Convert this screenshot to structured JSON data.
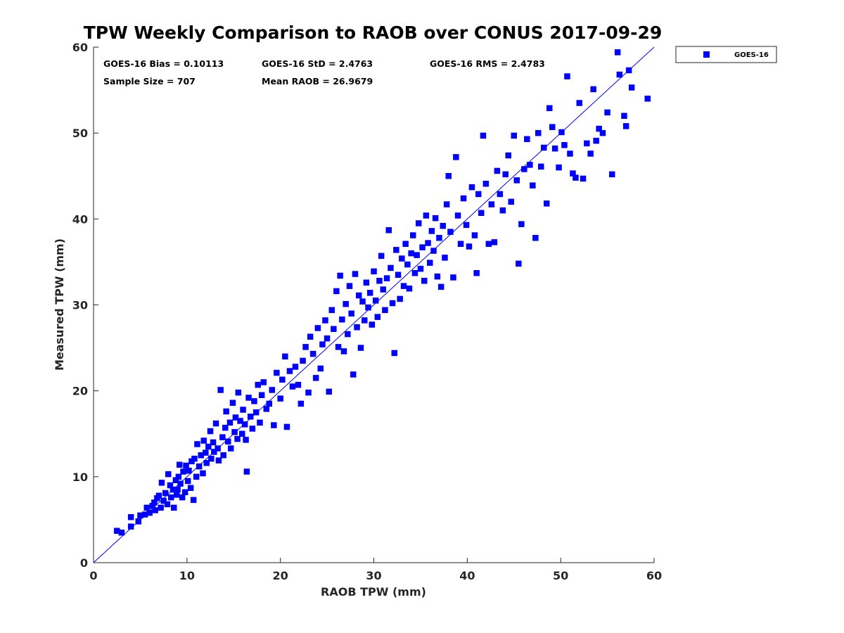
{
  "chart_data": {
    "type": "scatter",
    "title": "TPW Weekly Comparison to RAOB over CONUS 2017-09-29",
    "xlabel": "RAOB TPW (mm)",
    "ylabel": "Measured TPW (mm)",
    "xlim": [
      0,
      60
    ],
    "ylim": [
      0,
      60
    ],
    "xticks": [
      "0",
      "10",
      "20",
      "30",
      "40",
      "50",
      "60"
    ],
    "yticks": [
      "0",
      "10",
      "20",
      "30",
      "40",
      "50",
      "60"
    ],
    "grid": false,
    "legend_position": "outside-top-right",
    "reference_line": {
      "from": [
        0,
        0
      ],
      "to": [
        60,
        60
      ],
      "color": "#0000ff"
    },
    "stats": {
      "bias": "GOES-16 Bias = 0.10113",
      "std": "GOES-16 StD = 2.4763",
      "rms": "GOES-16 RMS = 2.4783",
      "sample_size": "Sample Size = 707",
      "mean_raob": "Mean RAOB = 26.9679"
    },
    "series": [
      {
        "name": "GOES-16",
        "color": "#0000ff",
        "marker": "square",
        "points": [
          [
            2.5,
            3.7
          ],
          [
            3.0,
            3.5
          ],
          [
            4.0,
            5.3
          ],
          [
            4.0,
            4.2
          ],
          [
            4.8,
            4.8
          ],
          [
            5.0,
            5.5
          ],
          [
            5.5,
            5.6
          ],
          [
            5.7,
            6.4
          ],
          [
            6.0,
            5.8
          ],
          [
            6.3,
            6.6
          ],
          [
            6.5,
            7.0
          ],
          [
            6.6,
            6.1
          ],
          [
            6.8,
            7.5
          ],
          [
            7.0,
            7.8
          ],
          [
            7.2,
            6.4
          ],
          [
            7.3,
            9.3
          ],
          [
            7.5,
            7.2
          ],
          [
            7.7,
            8.1
          ],
          [
            7.9,
            6.8
          ],
          [
            8.0,
            10.3
          ],
          [
            8.2,
            9.0
          ],
          [
            8.3,
            7.6
          ],
          [
            8.5,
            8.5
          ],
          [
            8.6,
            6.4
          ],
          [
            8.8,
            9.6
          ],
          [
            8.9,
            7.9
          ],
          [
            9.0,
            8.5
          ],
          [
            9.1,
            10.0
          ],
          [
            9.2,
            11.4
          ],
          [
            9.3,
            9.2
          ],
          [
            9.5,
            7.6
          ],
          [
            9.6,
            10.6
          ],
          [
            9.8,
            8.2
          ],
          [
            9.9,
            11.3
          ],
          [
            10.1,
            9.5
          ],
          [
            10.2,
            10.7
          ],
          [
            10.4,
            8.7
          ],
          [
            10.5,
            11.8
          ],
          [
            10.7,
            7.3
          ],
          [
            10.8,
            12.1
          ],
          [
            11.0,
            10.0
          ],
          [
            11.1,
            13.8
          ],
          [
            11.3,
            11.2
          ],
          [
            11.5,
            12.5
          ],
          [
            11.7,
            10.4
          ],
          [
            11.8,
            14.2
          ],
          [
            12.0,
            12.8
          ],
          [
            12.1,
            11.6
          ],
          [
            12.3,
            13.5
          ],
          [
            12.5,
            15.3
          ],
          [
            12.6,
            12.1
          ],
          [
            12.8,
            14.0
          ],
          [
            12.9,
            12.9
          ],
          [
            13.1,
            16.2
          ],
          [
            13.3,
            13.3
          ],
          [
            13.4,
            11.9
          ],
          [
            13.6,
            20.1
          ],
          [
            13.8,
            14.6
          ],
          [
            13.9,
            12.5
          ],
          [
            14.1,
            15.7
          ],
          [
            14.2,
            17.6
          ],
          [
            14.4,
            14.1
          ],
          [
            14.6,
            16.3
          ],
          [
            14.7,
            13.3
          ],
          [
            14.9,
            18.6
          ],
          [
            15.1,
            15.2
          ],
          [
            15.2,
            16.9
          ],
          [
            15.4,
            14.4
          ],
          [
            15.5,
            19.8
          ],
          [
            15.7,
            16.5
          ],
          [
            15.9,
            15.0
          ],
          [
            16.0,
            17.8
          ],
          [
            16.2,
            16.1
          ],
          [
            16.3,
            14.3
          ],
          [
            16.4,
            10.6
          ],
          [
            16.6,
            19.2
          ],
          [
            16.8,
            17.0
          ],
          [
            17.0,
            15.6
          ],
          [
            17.2,
            18.8
          ],
          [
            17.4,
            17.5
          ],
          [
            17.6,
            20.7
          ],
          [
            17.8,
            16.3
          ],
          [
            18.0,
            19.5
          ],
          [
            18.2,
            21.0
          ],
          [
            18.5,
            17.9
          ],
          [
            18.8,
            18.5
          ],
          [
            19.1,
            20.1
          ],
          [
            19.3,
            16.0
          ],
          [
            19.6,
            22.1
          ],
          [
            20.0,
            19.1
          ],
          [
            20.2,
            21.3
          ],
          [
            20.5,
            24.0
          ],
          [
            20.7,
            15.8
          ],
          [
            21.0,
            22.3
          ],
          [
            21.3,
            20.5
          ],
          [
            21.6,
            22.8
          ],
          [
            21.9,
            20.7
          ],
          [
            22.2,
            18.5
          ],
          [
            22.4,
            23.5
          ],
          [
            22.7,
            25.1
          ],
          [
            23.0,
            19.8
          ],
          [
            23.2,
            26.3
          ],
          [
            23.5,
            24.3
          ],
          [
            23.8,
            21.5
          ],
          [
            24.0,
            27.3
          ],
          [
            24.3,
            22.6
          ],
          [
            24.5,
            25.4
          ],
          [
            24.8,
            28.2
          ],
          [
            25.0,
            26.1
          ],
          [
            25.2,
            19.9
          ],
          [
            25.5,
            29.4
          ],
          [
            25.7,
            27.2
          ],
          [
            26.0,
            31.6
          ],
          [
            26.2,
            25.1
          ],
          [
            26.4,
            33.4
          ],
          [
            26.6,
            28.3
          ],
          [
            26.8,
            24.6
          ],
          [
            27.0,
            30.1
          ],
          [
            27.2,
            26.6
          ],
          [
            27.4,
            32.2
          ],
          [
            27.6,
            29.0
          ],
          [
            27.8,
            21.9
          ],
          [
            28.0,
            33.6
          ],
          [
            28.2,
            27.4
          ],
          [
            28.4,
            31.1
          ],
          [
            28.6,
            25.0
          ],
          [
            28.8,
            30.4
          ],
          [
            29.0,
            28.2
          ],
          [
            29.2,
            32.6
          ],
          [
            29.4,
            29.7
          ],
          [
            29.6,
            31.4
          ],
          [
            29.8,
            27.7
          ],
          [
            30.0,
            33.9
          ],
          [
            30.2,
            30.5
          ],
          [
            30.4,
            28.6
          ],
          [
            30.6,
            32.8
          ],
          [
            30.8,
            35.7
          ],
          [
            31.0,
            31.8
          ],
          [
            31.2,
            29.4
          ],
          [
            31.4,
            33.1
          ],
          [
            31.6,
            38.7
          ],
          [
            31.8,
            34.3
          ],
          [
            32.0,
            30.2
          ],
          [
            32.2,
            24.4
          ],
          [
            32.4,
            36.4
          ],
          [
            32.6,
            33.5
          ],
          [
            32.8,
            30.7
          ],
          [
            33.0,
            35.4
          ],
          [
            33.2,
            32.2
          ],
          [
            33.4,
            37.1
          ],
          [
            33.6,
            34.7
          ],
          [
            33.8,
            31.9
          ],
          [
            34.0,
            36.0
          ],
          [
            34.2,
            38.1
          ],
          [
            34.4,
            33.7
          ],
          [
            34.6,
            35.8
          ],
          [
            34.8,
            39.5
          ],
          [
            35.0,
            34.2
          ],
          [
            35.2,
            36.7
          ],
          [
            35.4,
            32.8
          ],
          [
            35.6,
            40.4
          ],
          [
            35.8,
            37.2
          ],
          [
            36.0,
            34.9
          ],
          [
            36.2,
            38.6
          ],
          [
            36.4,
            36.3
          ],
          [
            36.6,
            40.1
          ],
          [
            36.8,
            33.3
          ],
          [
            37.0,
            37.8
          ],
          [
            37.2,
            32.1
          ],
          [
            37.4,
            39.2
          ],
          [
            37.6,
            35.5
          ],
          [
            37.8,
            41.7
          ],
          [
            38.0,
            45.0
          ],
          [
            38.2,
            38.5
          ],
          [
            38.5,
            33.2
          ],
          [
            38.8,
            47.2
          ],
          [
            39.0,
            40.4
          ],
          [
            39.3,
            37.1
          ],
          [
            39.6,
            42.4
          ],
          [
            39.9,
            39.3
          ],
          [
            40.2,
            36.8
          ],
          [
            40.5,
            43.7
          ],
          [
            40.8,
            38.1
          ],
          [
            41.0,
            33.7
          ],
          [
            41.2,
            42.9
          ],
          [
            41.5,
            40.7
          ],
          [
            41.7,
            49.7
          ],
          [
            42.0,
            44.1
          ],
          [
            42.3,
            37.1
          ],
          [
            42.6,
            41.7
          ],
          [
            42.9,
            37.3
          ],
          [
            43.2,
            45.6
          ],
          [
            43.5,
            42.9
          ],
          [
            43.8,
            41.0
          ],
          [
            44.1,
            45.2
          ],
          [
            44.4,
            47.4
          ],
          [
            44.7,
            42.0
          ],
          [
            45.0,
            49.7
          ],
          [
            45.3,
            44.5
          ],
          [
            45.5,
            34.8
          ],
          [
            45.8,
            39.4
          ],
          [
            46.1,
            45.8
          ],
          [
            46.4,
            49.3
          ],
          [
            46.7,
            46.3
          ],
          [
            47.0,
            43.9
          ],
          [
            47.3,
            37.8
          ],
          [
            47.6,
            50.0
          ],
          [
            47.9,
            46.1
          ],
          [
            48.2,
            48.3
          ],
          [
            48.5,
            41.8
          ],
          [
            48.8,
            52.9
          ],
          [
            49.1,
            50.7
          ],
          [
            49.4,
            48.2
          ],
          [
            49.8,
            46.0
          ],
          [
            50.1,
            50.1
          ],
          [
            50.4,
            48.6
          ],
          [
            50.7,
            56.6
          ],
          [
            51.0,
            47.6
          ],
          [
            51.3,
            45.3
          ],
          [
            51.6,
            44.8
          ],
          [
            52.0,
            53.5
          ],
          [
            52.4,
            44.7
          ],
          [
            52.8,
            48.8
          ],
          [
            53.2,
            47.6
          ],
          [
            53.5,
            55.1
          ],
          [
            53.8,
            49.1
          ],
          [
            54.1,
            50.5
          ],
          [
            54.5,
            50.0
          ],
          [
            55.0,
            52.4
          ],
          [
            55.5,
            45.2
          ],
          [
            56.1,
            59.4
          ],
          [
            56.3,
            56.8
          ],
          [
            56.8,
            52.0
          ],
          [
            57.0,
            50.8
          ],
          [
            57.3,
            57.3
          ],
          [
            57.6,
            55.3
          ],
          [
            59.3,
            54.0
          ]
        ]
      }
    ]
  }
}
